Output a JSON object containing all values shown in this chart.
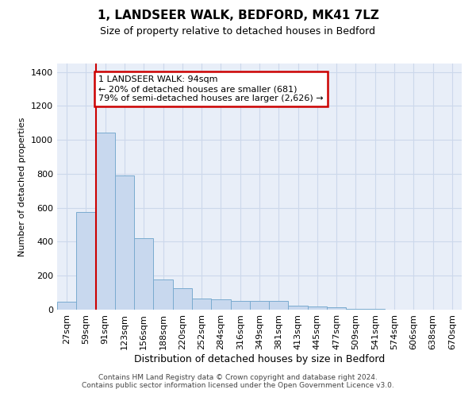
{
  "title": "1, LANDSEER WALK, BEDFORD, MK41 7LZ",
  "subtitle": "Size of property relative to detached houses in Bedford",
  "xlabel": "Distribution of detached houses by size in Bedford",
  "ylabel": "Number of detached properties",
  "bar_color": "#c8d8ee",
  "bar_edge_color": "#7aabcf",
  "categories": [
    "27sqm",
    "59sqm",
    "91sqm",
    "123sqm",
    "156sqm",
    "188sqm",
    "220sqm",
    "252sqm",
    "284sqm",
    "316sqm",
    "349sqm",
    "381sqm",
    "413sqm",
    "445sqm",
    "477sqm",
    "509sqm",
    "541sqm",
    "574sqm",
    "606sqm",
    "638sqm",
    "670sqm"
  ],
  "values": [
    48,
    575,
    1042,
    790,
    420,
    180,
    125,
    65,
    60,
    50,
    50,
    50,
    25,
    20,
    15,
    5,
    3,
    0,
    0,
    0,
    0
  ],
  "ylim": [
    0,
    1450
  ],
  "yticks": [
    0,
    200,
    400,
    600,
    800,
    1000,
    1200,
    1400
  ],
  "property_bar_index": 2,
  "annotation_text": "1 LANDSEER WALK: 94sqm\n← 20% of detached houses are smaller (681)\n79% of semi-detached houses are larger (2,626) →",
  "annotation_box_color": "#ffffff",
  "annotation_box_edge_color": "#cc0000",
  "property_line_color": "#cc0000",
  "grid_color": "#ccd8eb",
  "background_color": "#e8eef8",
  "footer_line1": "Contains HM Land Registry data © Crown copyright and database right 2024.",
  "footer_line2": "Contains public sector information licensed under the Open Government Licence v3.0."
}
